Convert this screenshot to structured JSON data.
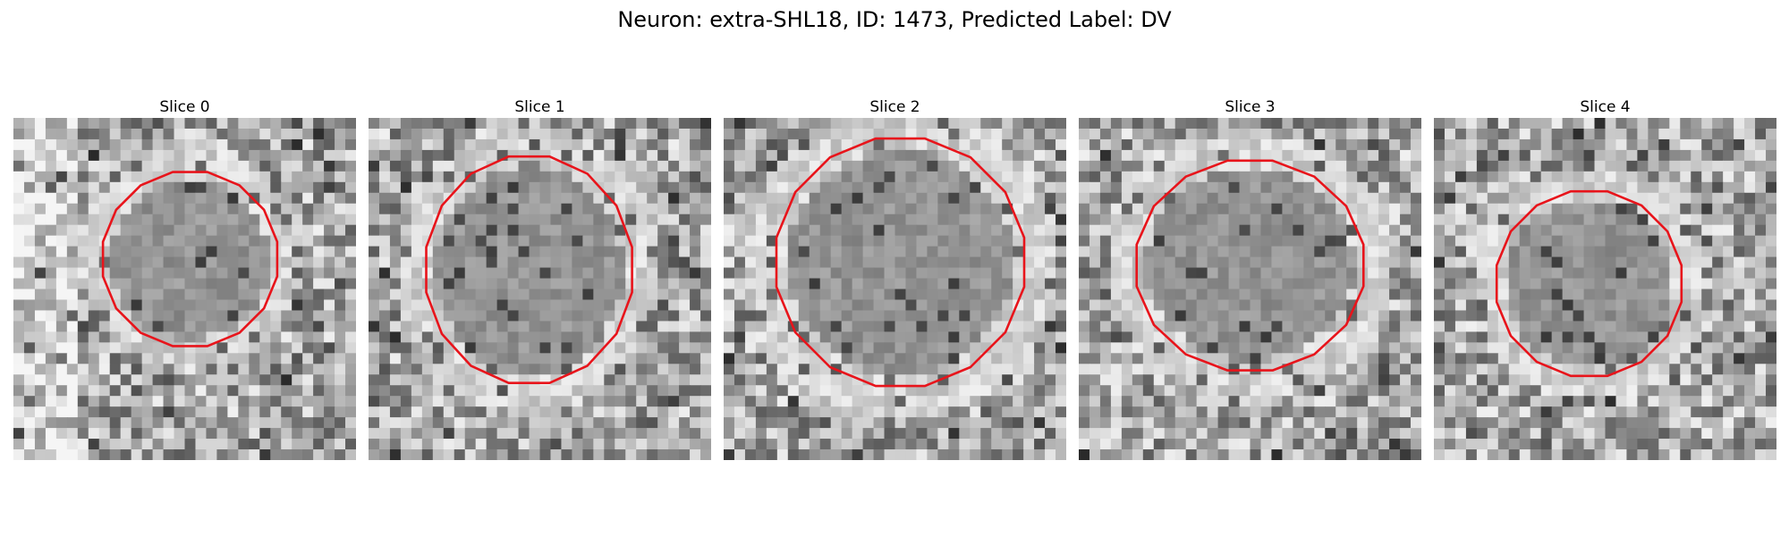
{
  "figure": {
    "title": "Neuron: extra-SHL18, ID: 1473, Predicted Label: DV",
    "contour_color": "#e8141b"
  },
  "panels": [
    {
      "title": "Slice 0",
      "seed": 11,
      "bias": "left-light"
    },
    {
      "title": "Slice 1",
      "seed": 23,
      "bias": "mixed"
    },
    {
      "title": "Slice 2",
      "seed": 37,
      "bias": "mid"
    },
    {
      "title": "Slice 3",
      "seed": 53,
      "bias": "mixed"
    },
    {
      "title": "Slice 4",
      "seed": 71,
      "bias": "mixed"
    }
  ]
}
